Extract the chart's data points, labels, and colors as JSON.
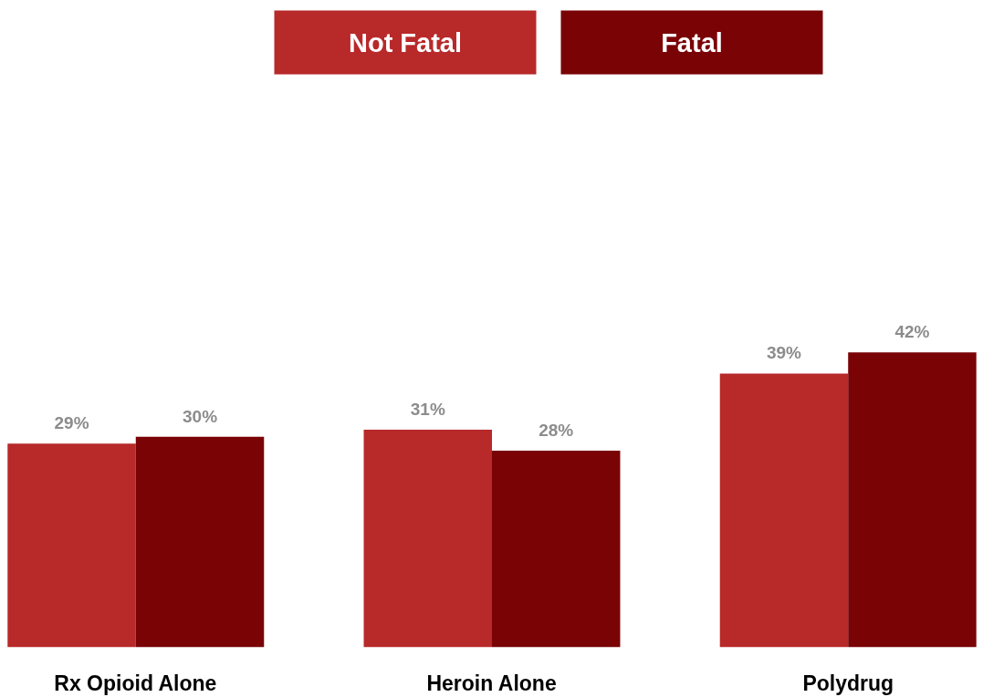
{
  "chart_data": {
    "type": "bar",
    "categories": [
      "Rx Opioid Alone",
      "Heroin Alone",
      "Polydrug"
    ],
    "series": [
      {
        "name": "Not Fatal",
        "color": "#b8292a",
        "values": [
          29,
          31,
          39
        ],
        "value_labels": [
          "29%",
          "31%",
          "39%"
        ]
      },
      {
        "name": "Fatal",
        "color": "#7a0306",
        "values": [
          30,
          28,
          42
        ],
        "value_labels": [
          "30%",
          "28%",
          "42%"
        ]
      }
    ],
    "legend": "top"
  }
}
